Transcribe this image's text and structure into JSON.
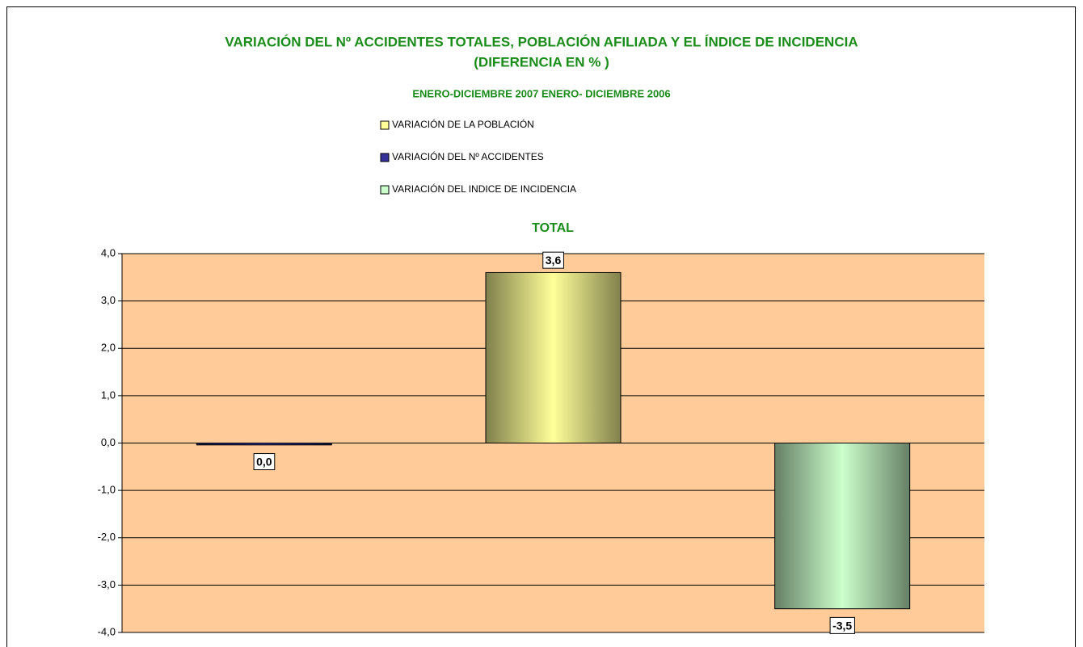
{
  "chart_data": {
    "type": "bar",
    "title": [
      "VARIACIÓN DEL Nº ACCIDENTES TOTALES, POBLACIÓN AFILIADA Y EL ÍNDICE DE INCIDENCIA",
      "(DIFERENCIA EN  % )"
    ],
    "subtitle": "ENERO-DICIEMBRE 2007 ENERO- DICIEMBRE 2006",
    "chart_title": "TOTAL",
    "series": [
      {
        "name": "VARIACIÓN DEL Nº ACCIDENTES",
        "color": "#333399",
        "values": [
          -0.04
        ],
        "value_labels": [
          "0,0"
        ]
      },
      {
        "name": "VARIACIÓN DE LA POBLACIÓN",
        "color": "#ffff99",
        "values": [
          3.6
        ],
        "value_labels": [
          "3,6"
        ]
      },
      {
        "name": "VARIACIÓN DEL INDICE DE INCIDENCIA",
        "color": "#ccffcc",
        "values": [
          -3.5
        ],
        "value_labels": [
          "-3,5"
        ]
      }
    ],
    "legend_order": [
      1,
      0,
      2
    ],
    "ylim": [
      -4,
      4
    ],
    "yticks": [
      {
        "value": -4,
        "label": "-4,0"
      },
      {
        "value": -3,
        "label": "-3,0"
      },
      {
        "value": -2,
        "label": "-2,0"
      },
      {
        "value": -1,
        "label": "-1,0"
      },
      {
        "value": 0,
        "label": "0,0"
      },
      {
        "value": 1,
        "label": "1,0"
      },
      {
        "value": 2,
        "label": "2,0"
      },
      {
        "value": 3,
        "label": "3,0"
      },
      {
        "value": 4,
        "label": "4,0"
      }
    ],
    "grid": true,
    "plot_background": "#ffcc99"
  }
}
